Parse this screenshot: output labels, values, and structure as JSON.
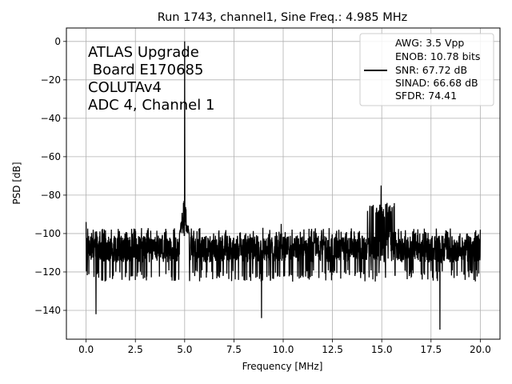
{
  "chart_data": {
    "type": "line",
    "title": "Run 1743, channel1, Sine Freq.: 4.985 MHz",
    "xlabel": "Frequency [MHz]",
    "ylabel": "PSD [dB]",
    "xlim": [
      -1.0,
      21.0
    ],
    "ylim": [
      -155,
      7
    ],
    "xticks": [
      0.0,
      2.5,
      5.0,
      7.5,
      10.0,
      12.5,
      15.0,
      17.5,
      20.0
    ],
    "xtick_labels": [
      "0.0",
      "2.5",
      "5.0",
      "7.5",
      "10.0",
      "12.5",
      "15.0",
      "17.5",
      "20.0"
    ],
    "yticks": [
      0,
      -20,
      -40,
      -60,
      -80,
      -100,
      -120,
      -140
    ],
    "ytick_labels": [
      "0",
      "−20",
      "−40",
      "−60",
      "−80",
      "−100",
      "−120",
      "−140"
    ],
    "grid": true,
    "line_color": "#000000",
    "annotation": [
      "ATLAS Upgrade",
      " Board E170685",
      "COLUTAv4",
      "ADC 4, Channel 1"
    ],
    "legend": {
      "position": "upper right",
      "lines": [
        "AWG: 3.5 Vpp",
        "ENOB: 10.78 bits",
        "SNR: 67.72 dB",
        "SINAD: 66.68 dB",
        "SFDR: 74.41"
      ]
    },
    "series": [
      {
        "noise_floor_db": -108,
        "noise_range_db": [
          -125,
          -97
        ],
        "x": [
          0.0,
          0.5,
          4.985,
          5.0,
          8.9,
          9.9,
          14.7,
          14.9,
          14.97,
          17.95,
          20.0
        ],
        "y": [
          -94,
          -142,
          -101,
          0,
          -144,
          -95,
          -89,
          -85,
          -75,
          -150,
          -98
        ]
      }
    ]
  }
}
